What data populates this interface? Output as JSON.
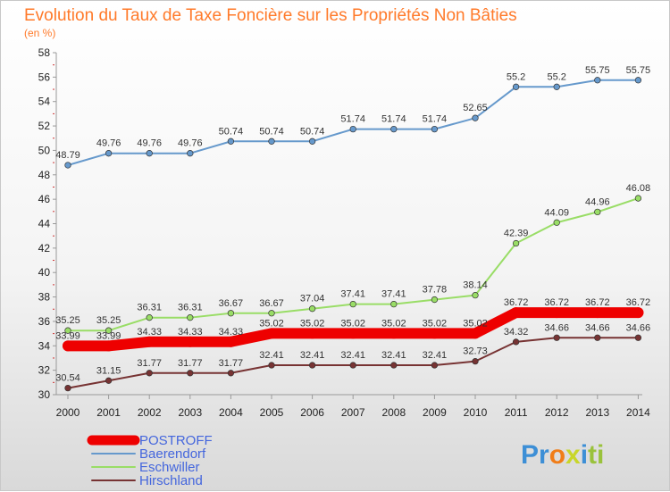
{
  "chart_data": {
    "type": "line",
    "title": "Evolution du Taux de Taxe Foncière sur les Propriétés Non Bâties",
    "unit_label": "(en %)",
    "xlabel": "",
    "ylabel": "",
    "x": [
      "2000",
      "2001",
      "2002",
      "2003",
      "2004",
      "2005",
      "2006",
      "2007",
      "2008",
      "2009",
      "2010",
      "2011",
      "2012",
      "2013",
      "2014"
    ],
    "ylim": [
      30,
      58
    ],
    "yticks": [
      30,
      32,
      34,
      36,
      38,
      40,
      42,
      44,
      46,
      48,
      50,
      52,
      54,
      56,
      58
    ],
    "grid": false,
    "legend_position": "bottom-left",
    "series": [
      {
        "name": "POSTROFF",
        "color": "#ee0000",
        "labels": [
          "33.99",
          "33.99",
          "34.33",
          "34.33",
          "34.33",
          "35.02",
          "35.02",
          "35.02",
          "35.02",
          "35.02",
          "35.02",
          "36.72",
          "36.72",
          "36.72",
          "36.72"
        ],
        "values": [
          33.99,
          33.99,
          34.33,
          34.33,
          34.33,
          35.02,
          35.02,
          35.02,
          35.02,
          35.02,
          35.02,
          36.72,
          36.72,
          36.72,
          36.72
        ]
      },
      {
        "name": "Baerendorf",
        "color": "#6699cc",
        "labels": [
          "48.79",
          "49.76",
          "49.76",
          "49.76",
          "50.74",
          "50.74",
          "50.74",
          "51.74",
          "51.74",
          "51.74",
          "52.65",
          "55.2",
          "55.2",
          "55.75",
          "55.75"
        ],
        "values": [
          48.79,
          49.76,
          49.76,
          49.76,
          50.74,
          50.74,
          50.74,
          51.74,
          51.74,
          51.74,
          52.65,
          55.2,
          55.2,
          55.75,
          55.75
        ]
      },
      {
        "name": "Eschwiller",
        "color": "#99dd66",
        "labels": [
          "35.25",
          "35.25",
          "36.31",
          "36.31",
          "36.67",
          "36.67",
          "37.04",
          "37.41",
          "37.41",
          "37.78",
          "38.14",
          "42.39",
          "44.09",
          "44.96",
          "46.08"
        ],
        "values": [
          35.25,
          35.25,
          36.31,
          36.31,
          36.67,
          36.67,
          37.04,
          37.41,
          37.41,
          37.78,
          38.14,
          42.39,
          44.09,
          44.96,
          46.08
        ]
      },
      {
        "name": "Hirschland",
        "color": "#773333",
        "labels": [
          "30.54",
          "31.15",
          "31.77",
          "31.77",
          "31.77",
          "32.41",
          "32.41",
          "32.41",
          "32.41",
          "32.41",
          "32.73",
          "34.32",
          "34.66",
          "34.66",
          "34.66"
        ],
        "values": [
          30.54,
          31.15,
          31.77,
          31.77,
          31.77,
          32.41,
          32.41,
          32.41,
          32.41,
          32.41,
          32.73,
          34.32,
          34.66,
          34.66,
          34.66
        ]
      }
    ]
  },
  "logo": {
    "parts": [
      "Pr",
      "o",
      "x",
      "i",
      "ti"
    ],
    "colors": [
      "#3d8fd6",
      "#f07d18",
      "#c8d62a",
      "#3d8fd6",
      "#9ac23c"
    ]
  }
}
